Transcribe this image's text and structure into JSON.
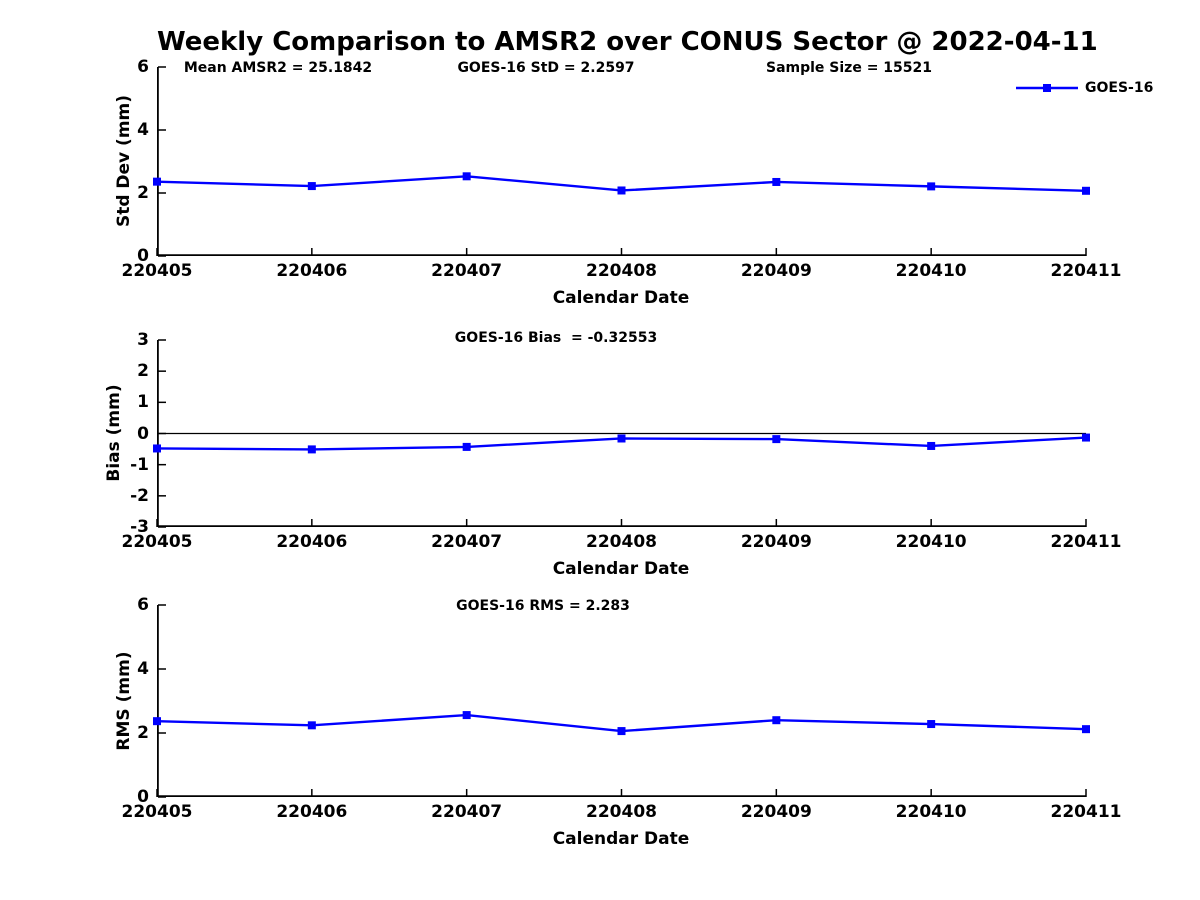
{
  "title": "Weekly Comparison to AMSR2 over CONUS Sector @ 2022-04-11",
  "legend": {
    "label": "GOES-16",
    "position": "top-right-of-first-plot"
  },
  "colors": {
    "line": "#0000FF",
    "axis": "#000000",
    "text": "#000000",
    "background": "#FFFFFF"
  },
  "chart_data": [
    {
      "type": "line",
      "name": "std-dev-weekly",
      "annotations": [
        "Mean AMSR2 = 25.1842",
        "GOES-16 StD = 2.2597",
        "Sample Size = 15521"
      ],
      "ylabel": "Std Dev (mm)",
      "xlabel": "Calendar Date",
      "categories": [
        "220405",
        "220406",
        "220407",
        "220408",
        "220409",
        "220410",
        "220411"
      ],
      "series": [
        {
          "name": "GOES-16",
          "values": [
            2.36,
            2.22,
            2.53,
            2.08,
            2.35,
            2.21,
            2.07
          ]
        }
      ],
      "ylim": [
        0,
        6
      ],
      "yticks": [
        0,
        2,
        4,
        6
      ],
      "grid": false,
      "zero_line": false
    },
    {
      "type": "line",
      "name": "bias-weekly",
      "annotations": [
        "GOES-16 Bias  = -0.32553"
      ],
      "ylabel": "Bias (mm)",
      "xlabel": "Calendar Date",
      "categories": [
        "220405",
        "220406",
        "220407",
        "220408",
        "220409",
        "220410",
        "220411"
      ],
      "series": [
        {
          "name": "GOES-16",
          "values": [
            -0.48,
            -0.51,
            -0.43,
            -0.16,
            -0.18,
            -0.4,
            -0.13
          ]
        }
      ],
      "ylim": [
        -3,
        3
      ],
      "yticks": [
        -3,
        -2,
        -1,
        0,
        1,
        2,
        3
      ],
      "grid": false,
      "zero_line": true
    },
    {
      "type": "line",
      "name": "rms-weekly",
      "annotations": [
        "GOES-16 RMS = 2.283"
      ],
      "ylabel": "RMS (mm)",
      "xlabel": "Calendar Date",
      "categories": [
        "220405",
        "220406",
        "220407",
        "220408",
        "220409",
        "220410",
        "220411"
      ],
      "series": [
        {
          "name": "GOES-16",
          "values": [
            2.37,
            2.24,
            2.56,
            2.06,
            2.4,
            2.28,
            2.12
          ]
        }
      ],
      "ylim": [
        0,
        6
      ],
      "yticks": [
        0,
        2,
        4,
        6
      ],
      "grid": false,
      "zero_line": false
    }
  ]
}
